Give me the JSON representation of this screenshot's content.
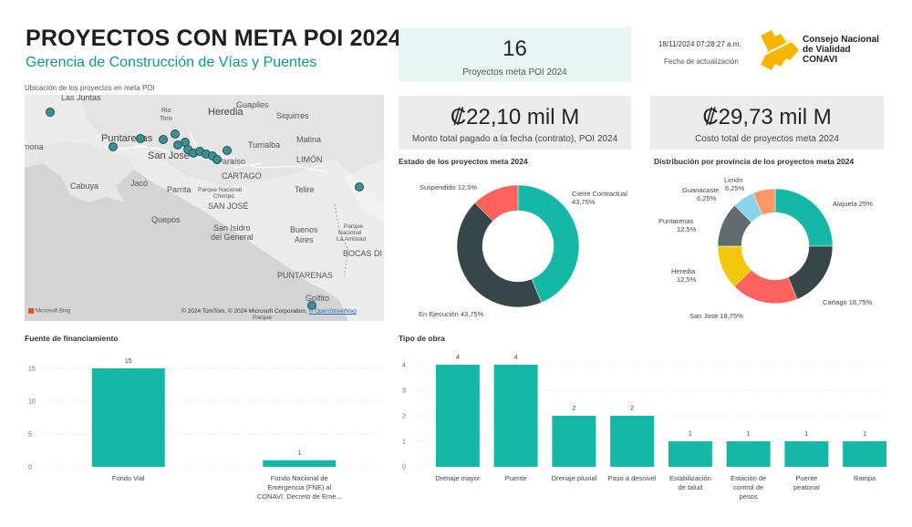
{
  "header": {
    "title": "PROYECTOS CON META POI 2024",
    "subtitle": "Gerencia de Construcción de Vías y Puentes"
  },
  "kpis": {
    "count": {
      "value": "16",
      "label": "Proyectos meta POI 2024"
    },
    "paid": {
      "value": "₡22,10 mil M",
      "label": "Monto total pagado a la fecha (contrato), POI 2024"
    },
    "total": {
      "value": "₡29,73 mil M",
      "label": "Costo total de proyectos meta 2024"
    }
  },
  "update": {
    "timestamp": "18/11/2024 07:28:27 a.m.",
    "label": "Fecha de actualización"
  },
  "logo": {
    "line1": "Consejo Nacional",
    "line2": "de Vialidad",
    "line3": "CONAVI"
  },
  "map": {
    "title": "Ubicación de los proyectos en meta POI",
    "labels": [
      "Las Juntas",
      "mona",
      "Puntarenas",
      "Rio",
      "Toro",
      "Heredia",
      "Guapiles",
      "Siquirres",
      "Turrialba",
      "Matina",
      "San José",
      "LIMÓN",
      "Paraíso",
      "CARTAGO",
      "Jacó",
      "Parrita",
      "Parque Nacional",
      "Chirripó",
      "Cabuya",
      "SAN JOSÉ",
      "Telire",
      "Quepos",
      "San Isidro",
      "del General",
      "Buenos",
      "Aires",
      "Parque",
      "Nacional",
      "La Amistad",
      "BOCAS DI",
      "PUNTARENAS",
      "Golfito",
      "Parque"
    ],
    "attribution": "© 2024 TomTom, © 2024 Microsoft Corporation, ",
    "osm": "© OpenStreetMap",
    "bing": "Microsoft Bing"
  },
  "estado": {
    "title": "Estado de los proyectos meta 2024",
    "labels": [
      "Suspendido 12,5%",
      "Cierre Contractual",
      "43,75%",
      "En Ejecución 43,75%"
    ]
  },
  "provincia": {
    "title": "Distribución por provincia de los proyectos meta 2024",
    "labels": [
      "Limón",
      "6,25%",
      "Guanacaste",
      "6,25%",
      "Alajuela 25%",
      "Puntarenas",
      "12,5%",
      "Heredia",
      "12,5%",
      "Cartago 18,75%",
      "San José 18,75%"
    ]
  },
  "financiamiento": {
    "title": "Fuente de financiamiento",
    "categories": [
      "Fondo Vial",
      "Fondo Nacional de Emergencia (FNE) al CONAVI. Decreto de Eme..."
    ],
    "cat_lines": [
      [
        "Fondo Vial"
      ],
      [
        "Fondo Nacional de",
        "Emergencia (FNE) al",
        "CONAVI. Decreto de Eme..."
      ]
    ],
    "values": [
      "15",
      "1"
    ],
    "ticks": [
      "15",
      "10",
      "5",
      "0"
    ]
  },
  "tipo": {
    "title": "Tipo de obra",
    "categories": [
      "Drenaje mayor",
      "Puente",
      "Drenaje pluvial",
      "Paso a desnivel",
      "Estabilización de talud",
      "Estación de control de pesos",
      "Puente peatonal",
      "Rampa"
    ],
    "cat_lines": [
      [
        "Drenaje mayor"
      ],
      [
        "Puente"
      ],
      [
        "Drenaje pluvial"
      ],
      [
        "Paso a desnivel"
      ],
      [
        "Estabilización",
        "de talud"
      ],
      [
        "Estación de",
        "control de",
        "pesos"
      ],
      [
        "Puente",
        "peatonal"
      ],
      [
        "Rampa"
      ]
    ],
    "values": [
      "4",
      "4",
      "2",
      "2",
      "1",
      "1",
      "1",
      "1"
    ],
    "ticks": [
      "4",
      "3",
      "2",
      "1",
      "0"
    ]
  },
  "chart_data": [
    {
      "type": "pie",
      "title": "Estado de los proyectos meta 2024",
      "categories": [
        "Cierre Contractual",
        "En Ejecución",
        "Suspendido"
      ],
      "values": [
        43.75,
        43.75,
        12.5
      ],
      "colors": [
        "#15b8a6",
        "#374649",
        "#fd625e"
      ]
    },
    {
      "type": "pie",
      "title": "Distribución por provincia de los proyectos meta 2024",
      "categories": [
        "Alajuela",
        "Cartago",
        "San José",
        "Heredia",
        "Puntarenas",
        "Guanacaste",
        "Limón"
      ],
      "values": [
        25,
        18.75,
        18.75,
        12.5,
        12.5,
        6.25,
        6.25
      ],
      "colors": [
        "#15b8a6",
        "#374649",
        "#fd625e",
        "#f2c80f",
        "#5f6b6d",
        "#8ad4eb",
        "#fe9666"
      ]
    },
    {
      "type": "bar",
      "title": "Fuente de financiamiento",
      "categories": [
        "Fondo Vial",
        "Fondo Nacional de Emergencia (FNE) al CONAVI. Decreto de Eme..."
      ],
      "values": [
        15,
        1
      ],
      "ylim": [
        0,
        15
      ]
    },
    {
      "type": "bar",
      "title": "Tipo de obra",
      "categories": [
        "Drenaje mayor",
        "Puente",
        "Drenaje pluvial",
        "Paso a desnivel",
        "Estabilización de talud",
        "Estación de control de pesos",
        "Puente peatonal",
        "Rampa"
      ],
      "values": [
        4,
        4,
        2,
        2,
        1,
        1,
        1,
        1
      ],
      "ylim": [
        0,
        4
      ]
    }
  ],
  "colors": {
    "accent": "#15b8a6",
    "title": "#109a8a",
    "logo_yellow": "#f7b500"
  }
}
